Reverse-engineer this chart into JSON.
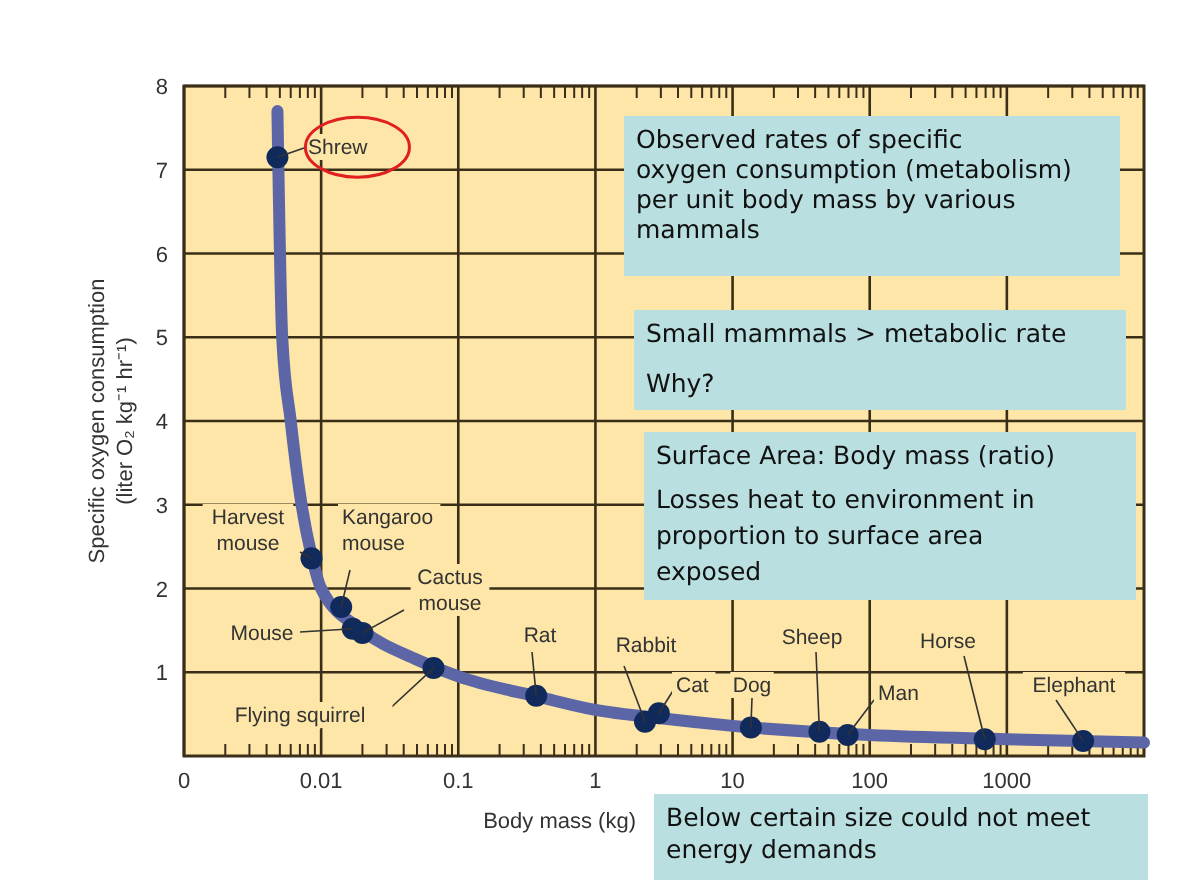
{
  "chart_data": {
    "type": "scatter",
    "xlabel": "Body mass (kg)",
    "ylabel": "Specific oxygen consumption\n(liter O₂ kg⁻¹ hr⁻¹)",
    "log": "x",
    "grid": true,
    "marker": "circle",
    "xlim": [
      0.001,
      10000
    ],
    "ylim": [
      0,
      8
    ],
    "xticks": [
      {
        "value": 0.001,
        "label": "0"
      },
      0.01,
      0.1,
      1,
      10,
      100,
      1000
    ],
    "yticks": [
      1,
      2,
      3,
      4,
      5,
      6,
      7,
      8
    ],
    "series": [
      {
        "type": "line",
        "color": "#5c66a6",
        "marker": "none",
        "x": [
          0.0048,
          0.0052,
          0.006,
          0.0072,
          0.0085,
          0.01,
          0.02,
          0.05,
          0.1,
          0.4,
          1,
          3,
          10,
          100,
          1000,
          10000
        ],
        "values": [
          7.7,
          5.0,
          4.0,
          3.0,
          2.4,
          2.0,
          1.5,
          1.15,
          0.95,
          0.7,
          0.55,
          0.45,
          0.36,
          0.25,
          0.2,
          0.16
        ]
      },
      {
        "color": "#102a5c",
        "x": [
          0.0048,
          0.0085,
          0.014,
          0.017,
          0.02,
          0.066,
          0.37,
          2.3,
          2.9,
          13.6,
          43,
          69,
          690,
          3600
        ],
        "values": [
          7.15,
          2.36,
          1.78,
          1.52,
          1.47,
          1.05,
          0.72,
          0.41,
          0.51,
          0.34,
          0.29,
          0.25,
          0.2,
          0.18
        ]
      }
    ],
    "annotations": [
      {
        "text": "Shrew",
        "x": 0.0048,
        "y": 7.15
      },
      {
        "text": "Harvest\nmouse",
        "x": 0.0085,
        "y": 2.36
      },
      {
        "text": "Kangaroo\nmouse",
        "x": 0.014,
        "y": 1.78
      },
      {
        "text": "Mouse",
        "x": 0.017,
        "y": 1.52
      },
      {
        "text": "Cactus\nmouse",
        "x": 0.02,
        "y": 1.47
      },
      {
        "text": "Flying squirrel",
        "x": 0.066,
        "y": 1.05
      },
      {
        "text": "Rat",
        "x": 0.37,
        "y": 0.72
      },
      {
        "text": "Rabbit",
        "x": 2.3,
        "y": 0.41
      },
      {
        "text": "Cat",
        "x": 2.9,
        "y": 0.51
      },
      {
        "text": "Dog",
        "x": 13.6,
        "y": 0.34
      },
      {
        "text": "Sheep",
        "x": 43,
        "y": 0.29
      },
      {
        "text": "Man",
        "x": 69,
        "y": 0.25
      },
      {
        "text": "Horse",
        "x": 690,
        "y": 0.2
      },
      {
        "text": "Elephant",
        "x": 3600,
        "y": 0.18
      },
      "Observed rates of specific\noxygen consumption (metabolism)\nper unit body mass by various\nmammals",
      "Small mammals > metabolic rate\nWhy?",
      "Surface Area: Body mass (ratio)\nLosses heat to environment in\nproportion to surface area\nexposed",
      "Below certain size could not meet\nenergy demands"
    ]
  }
}
